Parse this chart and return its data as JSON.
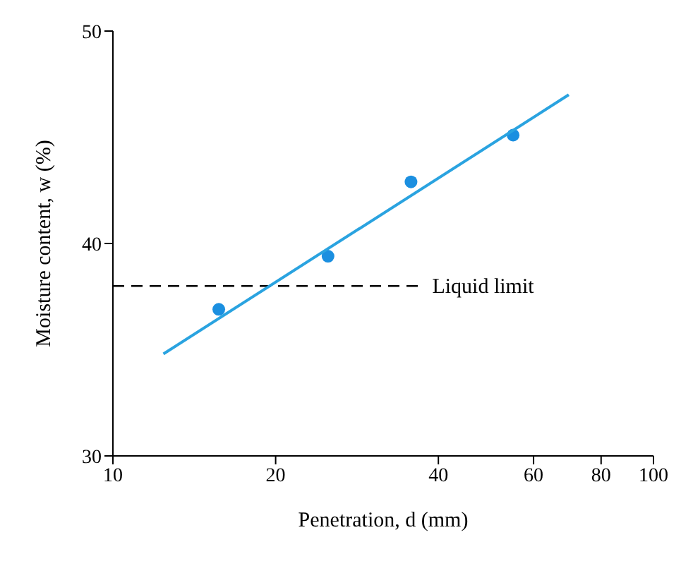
{
  "chart_data": {
    "type": "scatter",
    "xlabel": "Penetration, d (mm)",
    "ylabel": "Moisture content, w (%)",
    "log": "x",
    "xlim": [
      10,
      100
    ],
    "xticks": [
      10,
      20,
      40,
      60,
      80,
      100
    ],
    "ylim": [
      30,
      50
    ],
    "yticks": [
      30,
      40,
      50
    ],
    "series": [
      {
        "type": "scatter",
        "color": "#1b8fe0",
        "marker": "circle",
        "x": [
          15.7,
          25,
          35.6,
          55
        ],
        "values": [
          36.9,
          39.4,
          42.9,
          45.1
        ]
      },
      {
        "type": "line",
        "color": "#2aa3e0",
        "marker": "none",
        "x": [
          12.4,
          69.7
        ],
        "values": [
          34.8,
          47.0
        ]
      }
    ],
    "ref_lines": [
      {
        "axis": "y",
        "value": 38,
        "label": "Liquid limit",
        "color": "#000000",
        "line_style": "dashed"
      }
    ]
  }
}
